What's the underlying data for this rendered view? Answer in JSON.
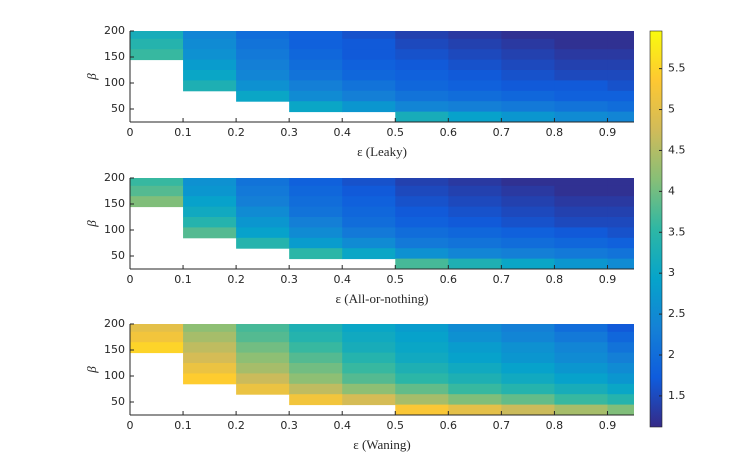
{
  "chart_data": [
    {
      "type": "heatmap",
      "xlabel": "ε (Leaky)",
      "ylabel": "β",
      "x": [
        0.05,
        0.15,
        0.25,
        0.35,
        0.45,
        0.55,
        0.65,
        0.75,
        0.85,
        0.95
      ],
      "y": [
        195,
        175,
        155,
        135,
        115,
        95,
        75,
        55,
        35
      ],
      "z": [
        [
          3.2,
          2.4,
          2.0,
          1.8,
          1.6,
          1.4,
          1.3,
          1.2,
          1.2,
          1.2
        ],
        [
          3.4,
          2.5,
          2.1,
          1.8,
          1.7,
          1.5,
          1.4,
          1.3,
          1.2,
          1.2
        ],
        [
          3.6,
          2.6,
          2.2,
          1.9,
          1.7,
          1.6,
          1.5,
          1.4,
          1.3,
          1.3
        ],
        [
          null,
          2.8,
          2.3,
          2.0,
          1.8,
          1.7,
          1.6,
          1.5,
          1.4,
          1.4
        ],
        [
          null,
          3.0,
          2.4,
          2.1,
          1.9,
          1.8,
          1.7,
          1.6,
          1.5,
          1.5
        ],
        [
          null,
          3.3,
          2.6,
          2.3,
          2.1,
          1.9,
          1.8,
          1.7,
          1.7,
          1.6
        ],
        [
          null,
          null,
          3.0,
          2.5,
          2.3,
          2.1,
          2.0,
          1.9,
          1.8,
          1.8
        ],
        [
          null,
          null,
          null,
          3.0,
          2.7,
          2.4,
          2.3,
          2.2,
          2.1,
          2.0
        ],
        [
          null,
          null,
          null,
          null,
          null,
          3.2,
          2.9,
          2.7,
          2.5,
          2.4
        ]
      ],
      "xlim": [
        0,
        0.95
      ],
      "ylim": [
        25,
        200
      ],
      "xticks": [
        0,
        0.1,
        0.2,
        0.3,
        0.4,
        0.5,
        0.6,
        0.7,
        0.8,
        0.9
      ],
      "yticks": [
        50,
        100,
        150,
        200
      ]
    },
    {
      "type": "heatmap",
      "xlabel": "ε (All-or-nothing)",
      "ylabel": "β",
      "x": [
        0.05,
        0.15,
        0.25,
        0.35,
        0.45,
        0.55,
        0.65,
        0.75,
        0.85,
        0.95
      ],
      "y": [
        195,
        175,
        155,
        135,
        115,
        95,
        75,
        55,
        35
      ],
      "z": [
        [
          3.6,
          2.6,
          2.1,
          1.8,
          1.6,
          1.4,
          1.3,
          1.2,
          1.2,
          1.2
        ],
        [
          3.8,
          2.7,
          2.2,
          1.9,
          1.7,
          1.5,
          1.4,
          1.3,
          1.2,
          1.2
        ],
        [
          4.1,
          2.9,
          2.3,
          2.0,
          1.8,
          1.6,
          1.5,
          1.4,
          1.3,
          1.3
        ],
        [
          null,
          3.1,
          2.5,
          2.1,
          1.9,
          1.7,
          1.6,
          1.5,
          1.4,
          1.4
        ],
        [
          null,
          3.4,
          2.7,
          2.3,
          2.0,
          1.8,
          1.7,
          1.6,
          1.5,
          1.5
        ],
        [
          null,
          3.8,
          2.9,
          2.5,
          2.2,
          2.0,
          1.9,
          1.8,
          1.7,
          1.6
        ],
        [
          null,
          null,
          3.4,
          2.8,
          2.5,
          2.2,
          2.1,
          2.0,
          1.9,
          1.8
        ],
        [
          null,
          null,
          null,
          3.5,
          3.0,
          2.6,
          2.4,
          2.3,
          2.2,
          2.1
        ],
        [
          null,
          null,
          null,
          null,
          null,
          3.7,
          3.3,
          3.0,
          2.7,
          2.5
        ]
      ],
      "xlim": [
        0,
        0.95
      ],
      "ylim": [
        25,
        200
      ],
      "xticks": [
        0,
        0.1,
        0.2,
        0.3,
        0.4,
        0.5,
        0.6,
        0.7,
        0.8,
        0.9
      ],
      "yticks": [
        50,
        100,
        150,
        200
      ]
    },
    {
      "type": "heatmap",
      "xlabel": "ε (Waning)",
      "ylabel": "β",
      "x": [
        0.05,
        0.15,
        0.25,
        0.35,
        0.45,
        0.55,
        0.65,
        0.75,
        0.85,
        0.95
      ],
      "y": [
        195,
        175,
        155,
        135,
        115,
        95,
        75,
        55,
        35
      ],
      "z": [
        [
          5.0,
          4.2,
          3.7,
          3.3,
          3.0,
          2.8,
          2.5,
          2.3,
          2.0,
          1.7
        ],
        [
          5.2,
          4.4,
          3.8,
          3.4,
          3.1,
          2.9,
          2.6,
          2.4,
          2.2,
          1.9
        ],
        [
          5.5,
          4.6,
          4.0,
          3.6,
          3.2,
          3.0,
          2.8,
          2.6,
          2.4,
          2.1
        ],
        [
          null,
          4.8,
          4.2,
          3.8,
          3.4,
          3.1,
          2.9,
          2.7,
          2.5,
          2.3
        ],
        [
          null,
          5.1,
          4.4,
          4.0,
          3.6,
          3.3,
          3.1,
          2.9,
          2.7,
          2.5
        ],
        [
          null,
          5.4,
          4.7,
          4.2,
          3.8,
          3.5,
          3.3,
          3.1,
          2.9,
          2.7
        ],
        [
          null,
          null,
          5.1,
          4.6,
          4.2,
          3.9,
          3.6,
          3.4,
          3.2,
          3.0
        ],
        [
          null,
          null,
          null,
          5.2,
          4.8,
          4.4,
          4.1,
          3.9,
          3.6,
          3.4
        ],
        [
          null,
          null,
          null,
          null,
          null,
          5.3,
          5.0,
          4.7,
          4.4,
          4.1
        ]
      ],
      "xlim": [
        0,
        0.95
      ],
      "ylim": [
        25,
        200
      ],
      "xticks": [
        0,
        0.1,
        0.2,
        0.3,
        0.4,
        0.5,
        0.6,
        0.7,
        0.8,
        0.9
      ],
      "yticks": [
        50,
        100,
        150,
        200
      ]
    }
  ],
  "colorbar": {
    "clim": [
      1.12,
      5.96
    ],
    "ticks": [
      1.5,
      2,
      2.5,
      3,
      3.5,
      4,
      4.5,
      5,
      5.5
    ],
    "colormap": [
      "#352a87",
      "#0f5cdd",
      "#1481d6",
      "#06a4ca",
      "#2eb7a4",
      "#87bf77",
      "#d1bb59",
      "#fec832",
      "#f9fb0e"
    ]
  }
}
